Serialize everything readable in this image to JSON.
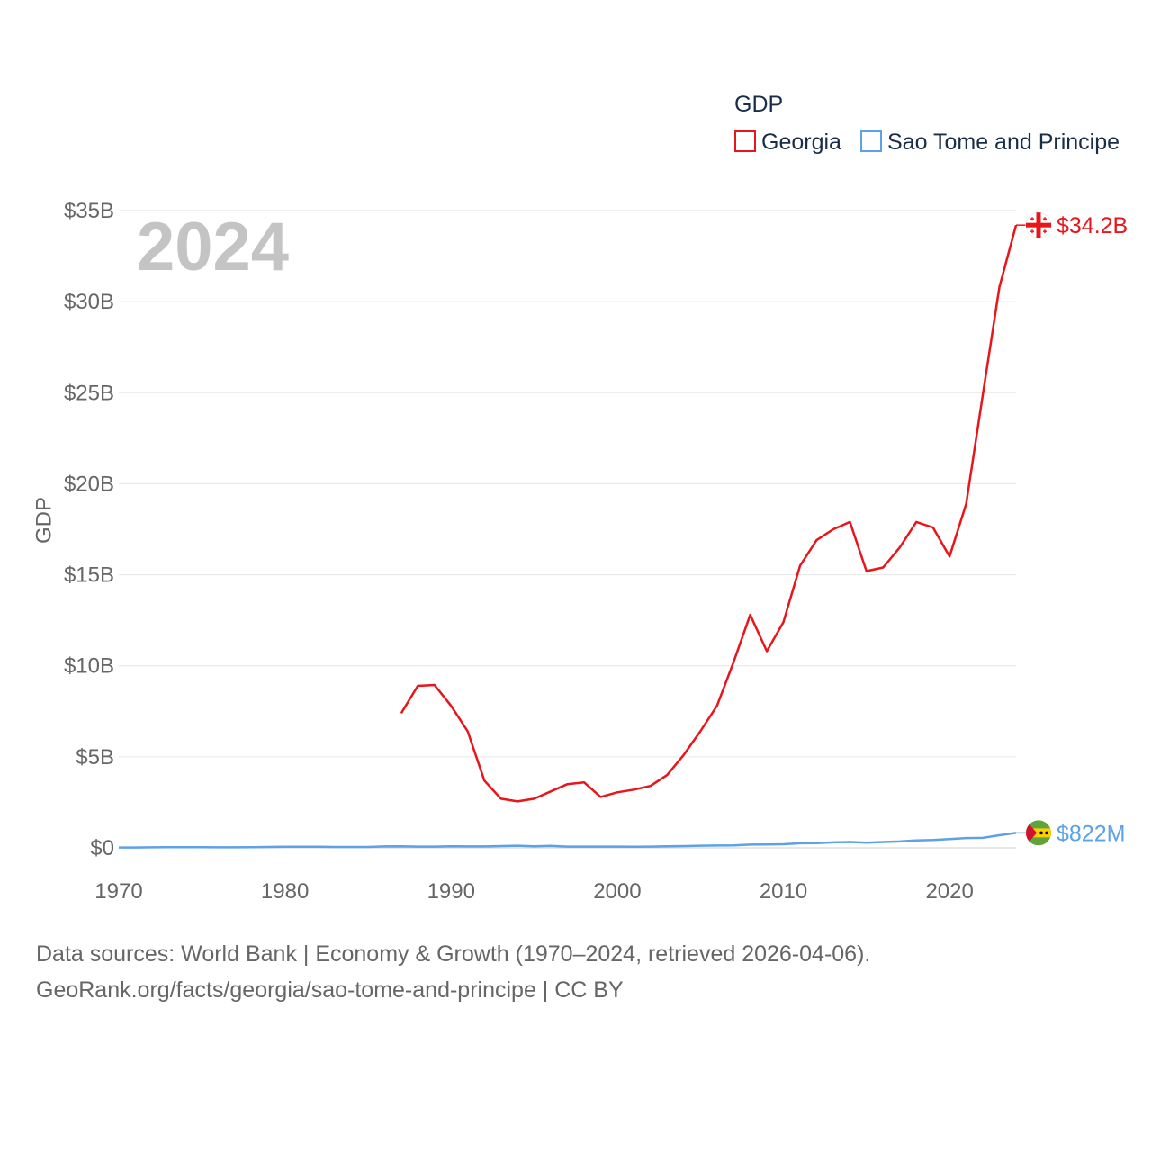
{
  "chart_data": {
    "type": "line",
    "title": "GDP",
    "ylabel": "GDP",
    "xlabel": "",
    "current_year": "2024",
    "xlim": [
      1970,
      2024
    ],
    "ylim": [
      0,
      35
    ],
    "y_unit": "billion USD",
    "x_ticks": [
      "1970",
      "1980",
      "1990",
      "2000",
      "2010",
      "2020"
    ],
    "y_ticks": [
      {
        "value": 0,
        "label": "$0"
      },
      {
        "value": 5,
        "label": "$5B"
      },
      {
        "value": 10,
        "label": "$10B"
      },
      {
        "value": 15,
        "label": "$15B"
      },
      {
        "value": 20,
        "label": "$20B"
      },
      {
        "value": 25,
        "label": "$25B"
      },
      {
        "value": 30,
        "label": "$30B"
      },
      {
        "value": 35,
        "label": "$35B"
      }
    ],
    "legend": {
      "title": "GDP",
      "position": "top-right"
    },
    "series": [
      {
        "name": "Georgia",
        "color": "#e8151b",
        "end_label": "$34.2B",
        "icon": "georgia-flag-icon",
        "x": [
          1987,
          1988,
          1989,
          1990,
          1991,
          1992,
          1993,
          1994,
          1995,
          1996,
          1997,
          1998,
          1999,
          2000,
          2001,
          2002,
          2003,
          2004,
          2005,
          2006,
          2007,
          2008,
          2009,
          2010,
          2011,
          2012,
          2013,
          2014,
          2015,
          2016,
          2017,
          2018,
          2019,
          2020,
          2021,
          2022,
          2023,
          2024
        ],
        "values": [
          7.4,
          8.9,
          8.95,
          7.8,
          6.4,
          3.7,
          2.7,
          2.55,
          2.7,
          3.1,
          3.5,
          3.6,
          2.8,
          3.05,
          3.2,
          3.4,
          4.0,
          5.1,
          6.4,
          7.8,
          10.2,
          12.8,
          10.8,
          12.4,
          15.5,
          16.9,
          17.5,
          17.9,
          15.2,
          15.4,
          16.5,
          17.9,
          17.6,
          16.0,
          18.9,
          24.9,
          30.8,
          34.2
        ]
      },
      {
        "name": "Sao Tome and Principe",
        "color": "#5da1e8",
        "end_label": "$822M",
        "icon": "sao-tome-flag-icon",
        "x": [
          1970,
          1971,
          1972,
          1973,
          1974,
          1975,
          1976,
          1977,
          1978,
          1979,
          1980,
          1981,
          1982,
          1983,
          1984,
          1985,
          1986,
          1987,
          1988,
          1989,
          1990,
          1991,
          1992,
          1993,
          1994,
          1995,
          1996,
          1997,
          1998,
          1999,
          2000,
          2001,
          2002,
          2003,
          2004,
          2005,
          2006,
          2007,
          2008,
          2009,
          2010,
          2011,
          2012,
          2013,
          2014,
          2015,
          2016,
          2017,
          2018,
          2019,
          2020,
          2021,
          2022,
          2023,
          2024
        ],
        "values": [
          0.02,
          0.02,
          0.03,
          0.04,
          0.04,
          0.04,
          0.03,
          0.03,
          0.04,
          0.05,
          0.06,
          0.06,
          0.06,
          0.05,
          0.05,
          0.05,
          0.08,
          0.09,
          0.07,
          0.07,
          0.09,
          0.08,
          0.08,
          0.1,
          0.12,
          0.09,
          0.11,
          0.07,
          0.07,
          0.07,
          0.07,
          0.06,
          0.07,
          0.09,
          0.1,
          0.12,
          0.13,
          0.14,
          0.18,
          0.19,
          0.2,
          0.25,
          0.26,
          0.3,
          0.32,
          0.28,
          0.32,
          0.35,
          0.41,
          0.43,
          0.48,
          0.54,
          0.55,
          0.69,
          0.822
        ]
      }
    ]
  },
  "footer": {
    "line1": "Data sources: World Bank | Economy & Growth (1970–2024, retrieved 2026-04-06).",
    "line2": "GeoRank.org/facts/georgia/sao-tome-and-principe | CC BY"
  }
}
